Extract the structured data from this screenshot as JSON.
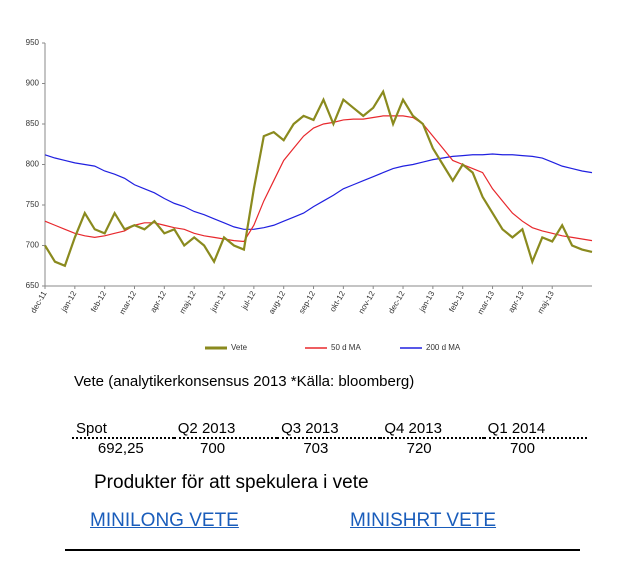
{
  "chart_data": {
    "type": "line",
    "categories": [
      "dec-11",
      null,
      null,
      "jan-12",
      null,
      null,
      "feb-12",
      null,
      null,
      "mar-12",
      null,
      null,
      "apr-12",
      null,
      null,
      "maj-12",
      null,
      null,
      "jun-12",
      null,
      null,
      "jul-12",
      null,
      null,
      "aug-12",
      null,
      null,
      "sep-12",
      null,
      null,
      "okt-12",
      null,
      null,
      "nov-12",
      null,
      null,
      "dec-12",
      null,
      null,
      "jan-13",
      null,
      null,
      "feb-13",
      null,
      null,
      "mar-13",
      null,
      null,
      "apr-13",
      null,
      null,
      "maj-13",
      null,
      null,
      null,
      null
    ],
    "series": [
      {
        "name": "Vete",
        "color": "#8a8a1e",
        "values": [
          700,
          680,
          675,
          710,
          740,
          720,
          715,
          740,
          720,
          725,
          720,
          730,
          715,
          720,
          700,
          710,
          700,
          680,
          710,
          700,
          695,
          770,
          835,
          840,
          830,
          850,
          860,
          855,
          880,
          850,
          880,
          870,
          860,
          870,
          890,
          850,
          880,
          860,
          850,
          820,
          800,
          780,
          800,
          790,
          760,
          740,
          720,
          710,
          720,
          680,
          710,
          705,
          725,
          700,
          695,
          692
        ]
      },
      {
        "name": "50 d MA",
        "color": "#e8282d",
        "values": [
          730,
          725,
          720,
          715,
          712,
          710,
          712,
          715,
          718,
          725,
          728,
          728,
          725,
          722,
          720,
          715,
          712,
          710,
          708,
          706,
          705,
          725,
          755,
          780,
          805,
          820,
          835,
          845,
          850,
          852,
          855,
          856,
          856,
          858,
          860,
          860,
          860,
          858,
          850,
          835,
          820,
          805,
          800,
          795,
          790,
          770,
          755,
          740,
          730,
          722,
          718,
          715,
          712,
          710,
          708,
          706
        ]
      },
      {
        "name": "200 d MA",
        "color": "#2020e0",
        "values": [
          812,
          808,
          805,
          802,
          800,
          798,
          792,
          788,
          783,
          775,
          770,
          765,
          758,
          752,
          748,
          742,
          738,
          733,
          728,
          723,
          720,
          720,
          722,
          725,
          730,
          735,
          740,
          748,
          755,
          762,
          770,
          775,
          780,
          785,
          790,
          795,
          798,
          800,
          803,
          806,
          808,
          810,
          811,
          812,
          812,
          813,
          812,
          812,
          811,
          810,
          808,
          803,
          798,
          795,
          792,
          790
        ]
      }
    ],
    "ylim": [
      650,
      950
    ],
    "yticks": [
      650,
      700,
      750,
      800,
      850,
      900,
      950
    ]
  },
  "table": {
    "title": "Vete (analytikerkonsensus 2013 *Källa: bloomberg)",
    "rows": [
      [
        "Spot",
        "Q2 2013",
        "Q3 2013",
        "Q4 2013",
        "Q1 2014"
      ],
      [
        "692,25",
        "700",
        "703",
        "720",
        "700"
      ]
    ]
  },
  "heading": "Produkter för att spekulera i vete",
  "links": [
    "MINILONG VETE",
    "MINISHRT VETE"
  ]
}
